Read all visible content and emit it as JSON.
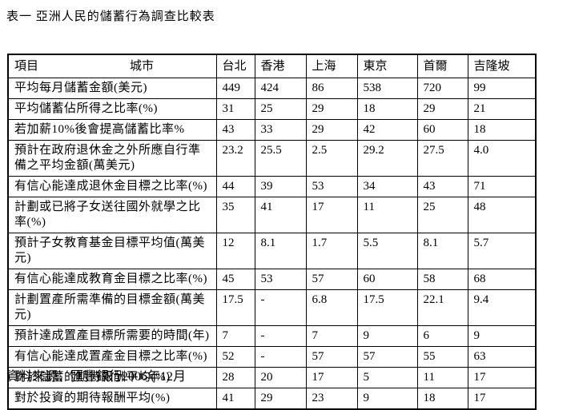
{
  "page": {
    "title": "表一 亞洲人民的儲蓄行為調查比較表",
    "source": "資料來源：匯豐銀行2006年12月"
  },
  "table": {
    "corner": {
      "item_label": "項目",
      "city_label": "城市"
    },
    "columns": [
      "台北",
      "香港",
      "上海",
      "東京",
      "首爾",
      "吉隆坡"
    ],
    "rows": [
      {
        "label": "平均每月儲蓄金額(美元)",
        "values": [
          "449",
          "424",
          "86",
          "538",
          "720",
          "99"
        ]
      },
      {
        "label": "平均儲蓄佔所得之比率(%)",
        "values": [
          "31",
          "25",
          "29",
          "18",
          "29",
          "21"
        ]
      },
      {
        "label": "若加薪10%後會提高儲蓄比率%",
        "values": [
          "43",
          "33",
          "29",
          "42",
          "60",
          "18"
        ]
      },
      {
        "label": "預計在政府退休金之外所應自行準備之平均金額(萬美元)",
        "values": [
          "23.2",
          "25.5",
          "2.5",
          "29.2",
          "27.5",
          "4.0"
        ]
      },
      {
        "label": "有信心能達成退休金目標之比率(%)",
        "values": [
          "44",
          "39",
          "53",
          "34",
          "43",
          "71"
        ]
      },
      {
        "label": "計劃或已將子女送往國外就學之比率(%)",
        "values": [
          "35",
          "41",
          "17",
          "11",
          "25",
          "48"
        ]
      },
      {
        "label": "預計子女教育基金目標平均值(萬美元)",
        "values": [
          "12",
          "8.1",
          "1.7",
          "5.5",
          "8.1",
          "5.7"
        ]
      },
      {
        "label": "有信心能達成教育金目標之比率(%)",
        "values": [
          "45",
          "53",
          "57",
          "60",
          "58",
          "68"
        ]
      },
      {
        "label": "計劃置產所需準備的目標金額(萬美元)",
        "values": [
          "17.5",
          "-",
          "6.8",
          "17.5",
          "22.1",
          "9.4"
        ]
      },
      {
        "label": "預計達成置產目標所需要的時間(年)",
        "values": [
          "7",
          "-",
          "7",
          "9",
          "6",
          "9"
        ]
      },
      {
        "label": "有信心能達成置產金目標之比率(%)",
        "values": [
          "52",
          "-",
          "57",
          "57",
          "55",
          "63"
        ]
      },
      {
        "label": "對於儲蓄的期待報酬平均(%)",
        "values": [
          "28",
          "20",
          "17",
          "5",
          "11",
          "17"
        ]
      },
      {
        "label": "對於投資的期待報酬平均(%)",
        "values": [
          "41",
          "29",
          "23",
          "9",
          "18",
          "17"
        ]
      }
    ]
  }
}
